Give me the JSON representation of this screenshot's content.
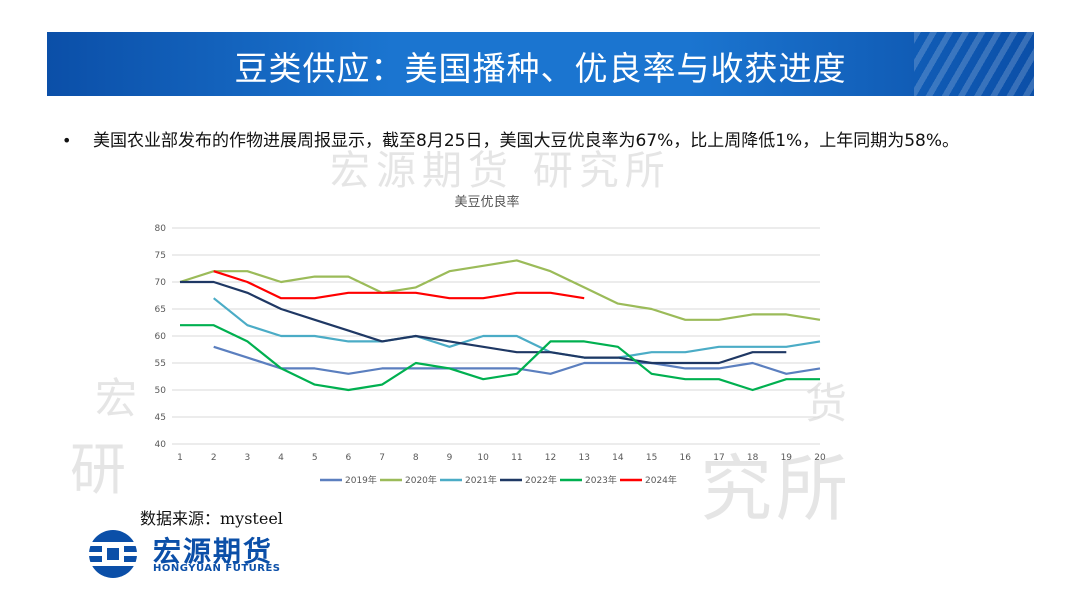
{
  "header": {
    "title": "豆类供应：美国播种、优良率与收获进度"
  },
  "bullet": {
    "marker": "•",
    "text": "美国农业部发布的作物进展周报显示，截至8月25日，美国大豆优良率为67%，比上周降低1%，上年同期为58%。"
  },
  "watermarks": [
    "宏源期货 研究所",
    "宏",
    "研",
    "货",
    "究所"
  ],
  "source": "数据来源：mysteel",
  "logo": {
    "name_cn": "宏源期货",
    "name_en": "HONGYUAN FUTURES",
    "brand_color": "#0b4fa8"
  },
  "chart_data": {
    "type": "line",
    "title": "美豆优良率",
    "xlabel": "",
    "ylabel": "",
    "x": [
      1,
      2,
      3,
      4,
      5,
      6,
      7,
      8,
      9,
      10,
      11,
      12,
      13,
      14,
      15,
      16,
      17,
      18,
      19,
      20
    ],
    "ylim": [
      40,
      80
    ],
    "yticks": [
      40,
      45,
      50,
      55,
      60,
      65,
      70,
      75,
      80
    ],
    "grid": true,
    "legend_position": "bottom",
    "series": [
      {
        "name": "2019年",
        "color": "#5b7fbf",
        "values": [
          null,
          58,
          56,
          54,
          54,
          53,
          54,
          54,
          54,
          54,
          54,
          53,
          55,
          55,
          55,
          54,
          54,
          55,
          53,
          54
        ]
      },
      {
        "name": "2020年",
        "color": "#9bbb59",
        "values": [
          70,
          72,
          72,
          70,
          71,
          71,
          68,
          69,
          72,
          73,
          74,
          72,
          69,
          66,
          65,
          63,
          63,
          64,
          64,
          63
        ]
      },
      {
        "name": "2021年",
        "color": "#4bacc6",
        "values": [
          null,
          67,
          62,
          60,
          60,
          59,
          59,
          60,
          58,
          60,
          60,
          57,
          56,
          56,
          57,
          57,
          58,
          58,
          58,
          59
        ]
      },
      {
        "name": "2022年",
        "color": "#1f3864",
        "values": [
          70,
          70,
          68,
          65,
          63,
          61,
          59,
          60,
          59,
          58,
          57,
          57,
          56,
          56,
          55,
          55,
          55,
          57,
          57,
          null
        ]
      },
      {
        "name": "2023年",
        "color": "#00b050",
        "values": [
          62,
          62,
          59,
          54,
          51,
          50,
          51,
          55,
          54,
          52,
          53,
          59,
          59,
          58,
          53,
          52,
          52,
          50,
          52,
          52
        ]
      },
      {
        "name": "2024年",
        "color": "#ff0000",
        "values": [
          null,
          72,
          70,
          67,
          67,
          68,
          68,
          68,
          67,
          67,
          68,
          68,
          67,
          null,
          null,
          null,
          null,
          null,
          null,
          null
        ]
      }
    ]
  }
}
